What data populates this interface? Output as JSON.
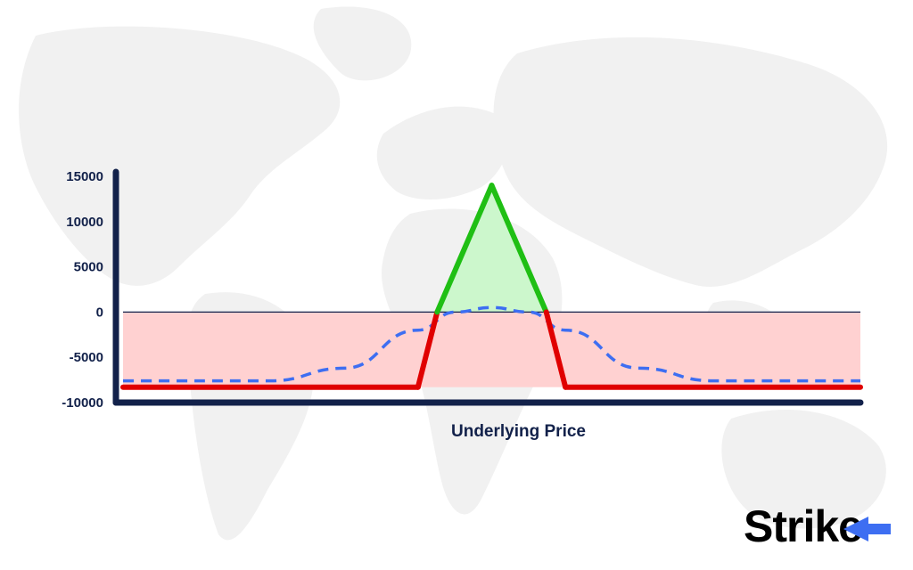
{
  "colors": {
    "axis": "#12214a",
    "profit_line": "#1fbf14",
    "profit_fill": "#ccf7cc",
    "loss_line": "#e00000",
    "loss_fill": "#ffd1d1",
    "dashed": "#3d6ef2",
    "map": "#f1f1f1",
    "brand_arrow": "#3d6ef2"
  },
  "brand": {
    "name": "Strike",
    "icon": "arrow-left-icon"
  },
  "chart_data": {
    "type": "line",
    "xlabel": "Underlying Price",
    "ylabel": "",
    "ylim": [
      -10000,
      15000
    ],
    "yticks": [
      "15000",
      "10000",
      "5000",
      "0",
      "-5000",
      "-10000"
    ],
    "ytick_values": [
      15000,
      10000,
      5000,
      0,
      -5000,
      -10000
    ],
    "x": [
      0,
      40,
      42.6,
      50,
      57.4,
      60,
      100
    ],
    "series": [
      {
        "style": "solid",
        "values": [
          -8300,
          -8300,
          0,
          14000,
          0,
          -8300,
          -8300
        ]
      },
      {
        "style": "dashed",
        "x": [
          0,
          20,
          30,
          40,
          45,
          50,
          55,
          60,
          70,
          80,
          100
        ],
        "values": [
          -7600,
          -7600,
          -6200,
          -2000,
          0,
          500,
          0,
          -2000,
          -6200,
          -7600,
          -7600
        ]
      }
    ],
    "breakevens_x": [
      42.6,
      57.4
    ],
    "grid": false
  }
}
